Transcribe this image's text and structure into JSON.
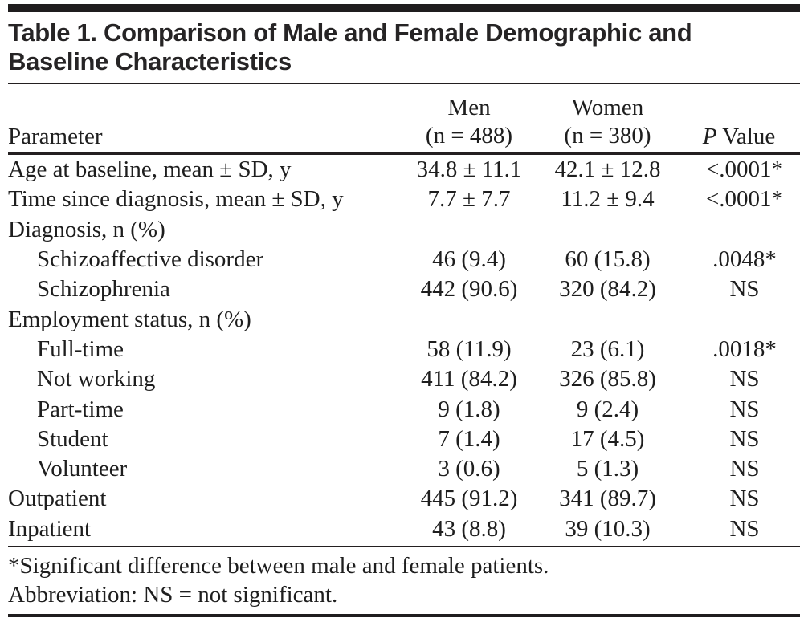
{
  "table": {
    "title_line1": "Table 1. Comparison of Male and Female Demographic and",
    "title_line2": "Baseline Characteristics",
    "columns": {
      "parameter": "Parameter",
      "men_label": "Men",
      "men_count": "(n = 488)",
      "women_label": "Women",
      "women_count": "(n = 380)",
      "p_italic": "P",
      "p_rest": " Value"
    },
    "rows": [
      {
        "parameter": "Age at baseline, mean ± SD, y",
        "indent": false,
        "men": "34.8 ± 11.1",
        "women": "42.1 ± 12.8",
        "p": "<.0001*"
      },
      {
        "parameter": "Time since diagnosis, mean ± SD, y",
        "indent": false,
        "men": "7.7 ± 7.7",
        "women": "11.2 ± 9.4",
        "p": "<.0001*"
      },
      {
        "parameter": "Diagnosis, n (%)",
        "indent": false,
        "men": "",
        "women": "",
        "p": ""
      },
      {
        "parameter": "Schizoaffective disorder",
        "indent": true,
        "men": "46 (9.4)",
        "women": "60 (15.8)",
        "p": ".0048*"
      },
      {
        "parameter": "Schizophrenia",
        "indent": true,
        "men": "442 (90.6)",
        "women": "320 (84.2)",
        "p": "NS"
      },
      {
        "parameter": "Employment status, n (%)",
        "indent": false,
        "men": "",
        "women": "",
        "p": ""
      },
      {
        "parameter": "Full-time",
        "indent": true,
        "men": "58 (11.9)",
        "women": "23 (6.1)",
        "p": ".0018*"
      },
      {
        "parameter": "Not working",
        "indent": true,
        "men": "411 (84.2)",
        "women": "326 (85.8)",
        "p": "NS"
      },
      {
        "parameter": "Part-time",
        "indent": true,
        "men": "9 (1.8)",
        "women": "9 (2.4)",
        "p": "NS"
      },
      {
        "parameter": "Student",
        "indent": true,
        "men": "7 (1.4)",
        "women": "17 (4.5)",
        "p": "NS"
      },
      {
        "parameter": "Volunteer",
        "indent": true,
        "men": "3 (0.6)",
        "women": "5 (1.3)",
        "p": "NS"
      },
      {
        "parameter": "Outpatient",
        "indent": false,
        "men": "445 (91.2)",
        "women": "341 (89.7)",
        "p": "NS"
      },
      {
        "parameter": "Inpatient",
        "indent": false,
        "men": "43 (8.8)",
        "women": "39 (10.3)",
        "p": "NS"
      }
    ],
    "footnotes": [
      "*Significant difference between male and female patients.",
      "Abbreviation: NS = not significant."
    ]
  }
}
